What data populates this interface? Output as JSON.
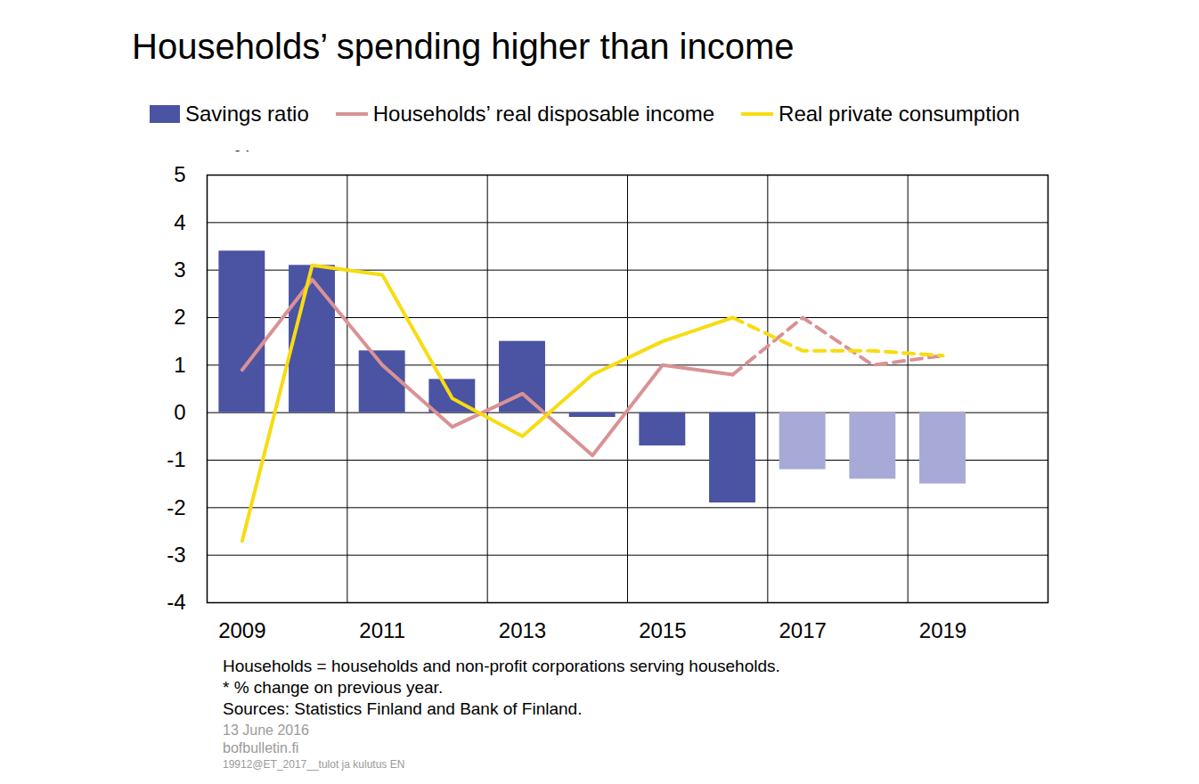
{
  "chart_data": {
    "type": "combo",
    "title": "Households’ spending higher than income",
    "y_label": "%",
    "categories": [
      "2009",
      null,
      "2011",
      null,
      "2013",
      null,
      "2015",
      null,
      "2017",
      null,
      "2019"
    ],
    "series": [
      {
        "name": "Savings ratio",
        "type": "bar",
        "colors": [
          "#4b53a3",
          "#4b53a3",
          "#4b53a3",
          "#4b53a3",
          "#4b53a3",
          "#4b53a3",
          "#4b53a3",
          "#4b53a3",
          "#a7aad6",
          "#a7aad6",
          "#a7aad6"
        ],
        "values": [
          3.4,
          3.1,
          1.3,
          0.7,
          1.5,
          -0.1,
          -0.7,
          -1.9,
          -1.2,
          -1.4,
          -1.5
        ]
      },
      {
        "name": "Households’ real disposable income",
        "type": "line",
        "color": "#d99294",
        "line_style": "solid",
        "values": [
          0.9,
          2.8,
          1.0,
          -0.3,
          0.4,
          -0.9,
          1.0,
          0.8,
          null,
          null,
          null
        ]
      },
      {
        "name": "Households’ real disposable income",
        "type": "line",
        "color": "#d99294",
        "line_style": "dashed",
        "values": [
          null,
          null,
          null,
          null,
          null,
          null,
          null,
          0.8,
          2.0,
          1.0,
          1.2
        ]
      },
      {
        "name": "Real private consumption",
        "type": "line",
        "color": "#f7dc11",
        "line_style": "solid",
        "values": [
          -2.7,
          3.1,
          2.9,
          0.3,
          -0.5,
          0.8,
          1.5,
          2.0,
          null,
          null,
          null
        ]
      },
      {
        "name": "Real private consumption",
        "type": "line",
        "color": "#f7dc11",
        "line_style": "dashed",
        "values": [
          null,
          null,
          null,
          null,
          null,
          null,
          null,
          2.0,
          1.3,
          1.3,
          1.2
        ]
      }
    ],
    "ylim": [
      -4,
      5
    ],
    "yticks": [
      -4,
      -3,
      -2,
      -1,
      0,
      1,
      2,
      3,
      4,
      5
    ],
    "grid": true,
    "legend": "top",
    "notes": [
      "Households = households and non-profit corporations serving households.",
      "* % change on previous year.",
      "Sources: Statistics Finland and Bank of Finland."
    ],
    "footer": [
      "13 June 2016",
      "bofbulletin.fi",
      "19912@ET_2017__tulot ja kulutus EN"
    ]
  }
}
